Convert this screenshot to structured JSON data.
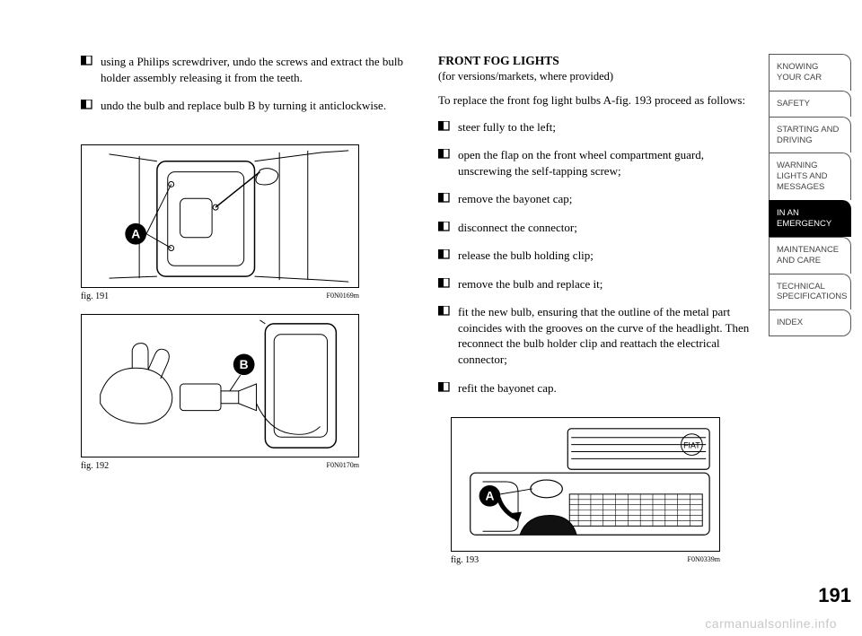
{
  "left": {
    "bullets": [
      "using a Philips screwdriver, undo the screws and extract the bulb holder assembly releasing it from the teeth.",
      "undo the bulb and replace bulb B by turning it anticlockwise."
    ],
    "fig191": {
      "caption": "fig. 191",
      "code": "F0N0169m",
      "label": "A"
    },
    "fig192": {
      "caption": "fig. 192",
      "code": "F0N0170m",
      "label": "B"
    }
  },
  "right": {
    "heading": "FRONT FOG LIGHTS",
    "subheading": "(for versions/markets, where provided)",
    "intro": "To replace the front fog light bulbs A-fig. 193 proceed as follows:",
    "bullets": [
      "steer fully to the left;",
      "open the flap on the front wheel compartment guard, unscrewing the self-tapping screw;",
      "remove the bayonet cap;",
      "disconnect the connector;",
      "release the bulb holding clip;",
      "remove the bulb and replace it;",
      "fit the new bulb, ensuring that the outline of the metal part coincides with the grooves on the curve of the headlight. Then reconnect the bulb holder clip and reattach the electrical connector;",
      "refit the bayonet cap."
    ],
    "fig193": {
      "caption": "fig. 193",
      "code": "F0N0339m",
      "label": "A"
    }
  },
  "tabs": [
    "KNOWING YOUR CAR",
    "SAFETY",
    "STARTING AND DRIVING",
    "WARNING LIGHTS AND MESSAGES",
    "IN AN EMERGENCY",
    "MAINTENANCE AND CARE",
    "TECHNICAL SPECIFICATIONS",
    "INDEX"
  ],
  "active_tab_index": 4,
  "page_number": "191",
  "watermark": "carmanualsonline.info",
  "colors": {
    "page_bg": "#ffffff",
    "text": "#000000",
    "tab_border": "#555555",
    "tab_text": "#444444",
    "tab_active_bg": "#000000",
    "tab_active_text": "#ffffff",
    "watermark": "#c8c8c8"
  }
}
